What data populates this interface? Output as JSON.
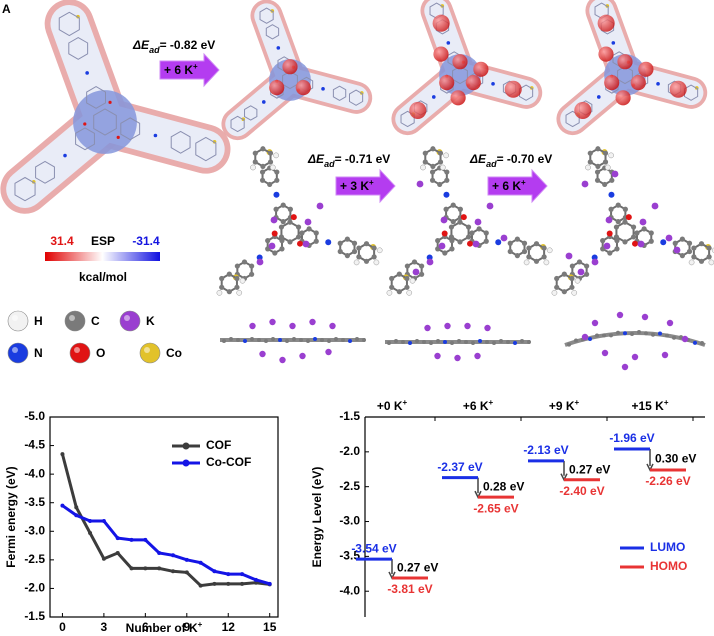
{
  "panel_label": "A",
  "esp_legend": {
    "max": "31.4",
    "title": "ESP",
    "min": "-31.4",
    "unit": "kcal/mol"
  },
  "atom_legend": [
    {
      "label": "H",
      "color": "#f2f2f2"
    },
    {
      "label": "C",
      "color": "#7a7a7a"
    },
    {
      "label": "K",
      "color": "#9a3fd0"
    },
    {
      "label": "N",
      "color": "#1a3ce0"
    },
    {
      "label": "O",
      "color": "#e01414"
    },
    {
      "label": "Co",
      "color": "#e2c22a"
    }
  ],
  "adsorption": {
    "symbol": "ΔE",
    "subscript": "ad",
    "ion": "K",
    "charge": "+",
    "steps": [
      {
        "energy": "= -0.82 eV",
        "ions": "+ 6 "
      },
      {
        "energy": "= -0.71 eV",
        "ions": "+ 3 "
      },
      {
        "energy": "= -0.70 eV",
        "ions": "+ 6 "
      }
    ]
  },
  "chart_data": [
    {
      "type": "line",
      "x": [
        0,
        1,
        2,
        3,
        4,
        5,
        6,
        7,
        8,
        9,
        10,
        11,
        12,
        13,
        14,
        15
      ],
      "series": [
        {
          "name": "COF",
          "color": "#3c3c3c",
          "values": [
            -4.35,
            -3.42,
            -2.97,
            -2.52,
            -2.62,
            -2.35,
            -2.35,
            -2.35,
            -2.3,
            -2.28,
            -2.05,
            -2.08,
            -2.08,
            -2.08,
            -2.1,
            -2.07
          ]
        },
        {
          "name": "Co-COF",
          "color": "#1414e6",
          "values": [
            -3.45,
            -3.28,
            -3.18,
            -3.18,
            -2.88,
            -2.85,
            -2.85,
            -2.62,
            -2.58,
            -2.5,
            -2.45,
            -2.3,
            -2.25,
            -2.25,
            -2.15,
            -2.08
          ]
        }
      ],
      "xlim": [
        -0.9,
        15.6
      ],
      "ylim": [
        -5,
        -1.5
      ],
      "y_inverted": true,
      "xticks": [
        0,
        3,
        6,
        9,
        12,
        15
      ],
      "yticks": [
        {
          "value": -5,
          "label": "-5.0"
        },
        -4.5,
        {
          "value": -4,
          "label": "-4.0"
        },
        -3.5,
        {
          "value": -3,
          "label": "-3.0"
        },
        -2.5,
        {
          "value": -2,
          "label": "-2.0"
        },
        -1.5
      ],
      "xlabel": "Number of K",
      "xlabel_sup": "+",
      "ylabel": "Fermi energy (eV)",
      "legend": "upper right"
    },
    {
      "type": "energy-level",
      "categories": [
        "+0 K",
        "+6 K",
        "+9 K",
        "+15 K"
      ],
      "category_sup": "+",
      "series": [
        {
          "name": "LUMO",
          "color": "#1a2fe6",
          "values": [
            -3.54,
            -2.37,
            -2.13,
            -1.96
          ],
          "value_labels": [
            "-3.54 eV",
            "-2.37 eV",
            "-2.13 eV",
            "-1.96 eV"
          ]
        },
        {
          "name": "HOMO",
          "color": "#e83434",
          "values": [
            -3.81,
            -2.65,
            -2.4,
            -2.26
          ],
          "value_labels": [
            "-3.81 eV",
            "-2.65 eV",
            "-2.40 eV",
            "-2.26 eV"
          ]
        }
      ],
      "gaps": [
        0.27,
        0.28,
        0.27,
        0.3
      ],
      "gap_labels": [
        "0.27 eV",
        "0.28 eV",
        "0.27 eV",
        "0.30 eV"
      ],
      "ylim": [
        -4.37,
        -1.5
      ],
      "yticks": [
        -1.5,
        {
          "value": -2,
          "label": "-2.0"
        },
        -2.5,
        {
          "value": -3,
          "label": "-3.0"
        },
        -3.5,
        {
          "value": -4,
          "label": "-4.0"
        }
      ],
      "ylabel": "Energy Level (eV)",
      "legend": "lower right"
    }
  ]
}
